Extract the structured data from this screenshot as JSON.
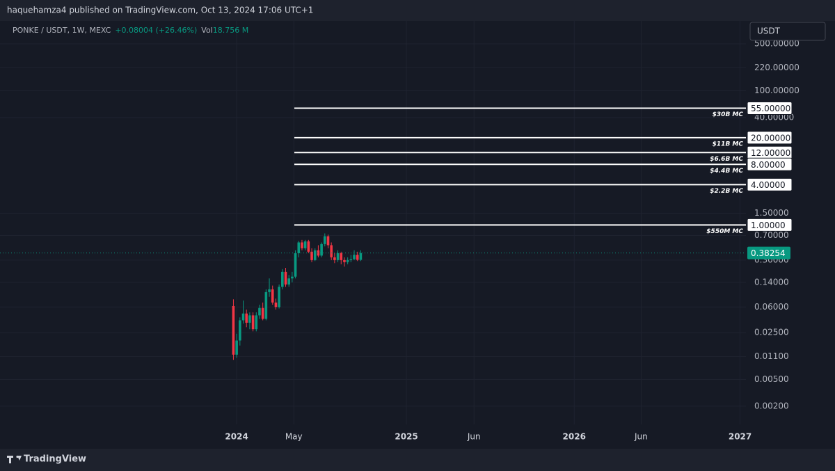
{
  "header": {
    "published": "haquehamza4 published on TradingView.com, Oct 13, 2024 17:06 UTC+1"
  },
  "chart_data": {
    "type": "candlestick",
    "symbol": "PONKE / USDT, 1W, MEXC",
    "change": "+0.08004 (+26.46%)",
    "volume_label": "Vol",
    "volume": "18.756 M",
    "currency": "USDT",
    "log_scale": true,
    "grid": true,
    "up_color": "#089981",
    "down_color": "#f23645",
    "ylim": [
      0.00107,
      1100
    ],
    "yticks": [
      {
        "value": 500,
        "label": "500.00000"
      },
      {
        "value": 220,
        "label": "220.00000"
      },
      {
        "value": 100,
        "label": "100.00000"
      },
      {
        "value": 40,
        "label": "40.00000"
      },
      {
        "value": 1.5,
        "label": "1.50000"
      },
      {
        "value": 0.7,
        "label": "0.70000"
      },
      {
        "value": 0.3,
        "label": "0.30000"
      },
      {
        "value": 0.14,
        "label": "0.14000"
      },
      {
        "value": 0.06,
        "label": "0.06000"
      },
      {
        "value": 0.025,
        "label": "0.02500"
      },
      {
        "value": 0.011,
        "label": "0.01100"
      },
      {
        "value": 0.005,
        "label": "0.00500"
      },
      {
        "value": 0.002,
        "label": "0.00200"
      }
    ],
    "xlim": [
      -72.5,
      156
    ],
    "xticks": [
      {
        "value": 0,
        "label": "2024"
      },
      {
        "value": 17.5,
        "label": "May"
      },
      {
        "value": 52,
        "label": "2025"
      },
      {
        "value": 72.7,
        "label": "Jun"
      },
      {
        "value": 103.4,
        "label": "2026"
      },
      {
        "value": 123.9,
        "label": "Jun"
      },
      {
        "value": 154.2,
        "label": "2027"
      }
    ],
    "candles": {
      "x": [
        -1,
        0,
        1,
        2,
        3,
        4,
        5,
        6,
        7,
        8,
        9,
        10,
        11,
        12,
        13,
        14,
        15,
        16,
        17,
        18,
        19,
        20,
        21,
        22,
        23,
        24,
        25,
        26,
        27,
        28,
        29,
        30,
        31,
        32,
        33,
        34,
        35,
        36,
        37,
        38
      ],
      "open": [
        0.062,
        0.0117,
        0.019,
        0.038,
        0.048,
        0.035,
        0.045,
        0.028,
        0.045,
        0.058,
        0.04,
        0.1,
        0.11,
        0.07,
        0.06,
        0.12,
        0.2,
        0.13,
        0.16,
        0.17,
        0.38,
        0.55,
        0.45,
        0.57,
        0.4,
        0.3,
        0.42,
        0.35,
        0.52,
        0.68,
        0.5,
        0.33,
        0.3,
        0.38,
        0.3,
        0.28,
        0.3,
        0.31,
        0.36,
        0.3025
      ],
      "high": [
        0.078,
        0.024,
        0.042,
        0.075,
        0.055,
        0.05,
        0.05,
        0.05,
        0.065,
        0.07,
        0.11,
        0.16,
        0.125,
        0.08,
        0.13,
        0.22,
        0.23,
        0.18,
        0.2,
        0.42,
        0.58,
        0.6,
        0.6,
        0.6,
        0.45,
        0.45,
        0.5,
        0.55,
        0.75,
        0.72,
        0.55,
        0.38,
        0.42,
        0.4,
        0.33,
        0.33,
        0.36,
        0.42,
        0.4,
        0.42
      ],
      "low": [
        0.0098,
        0.0105,
        0.016,
        0.034,
        0.03,
        0.028,
        0.026,
        0.026,
        0.04,
        0.038,
        0.038,
        0.085,
        0.065,
        0.055,
        0.057,
        0.11,
        0.12,
        0.12,
        0.14,
        0.16,
        0.33,
        0.42,
        0.42,
        0.38,
        0.28,
        0.29,
        0.33,
        0.33,
        0.48,
        0.45,
        0.3,
        0.27,
        0.28,
        0.26,
        0.24,
        0.26,
        0.28,
        0.3,
        0.29,
        0.29
      ],
      "close": [
        0.0117,
        0.019,
        0.038,
        0.048,
        0.035,
        0.045,
        0.028,
        0.045,
        0.058,
        0.04,
        0.1,
        0.11,
        0.07,
        0.06,
        0.12,
        0.2,
        0.13,
        0.16,
        0.17,
        0.38,
        0.55,
        0.45,
        0.57,
        0.4,
        0.3,
        0.42,
        0.35,
        0.52,
        0.68,
        0.5,
        0.33,
        0.3,
        0.38,
        0.3,
        0.28,
        0.3,
        0.31,
        0.36,
        0.3025,
        0.38254
      ]
    },
    "levels": {
      "color": "#ffffff",
      "values": [
        55,
        20,
        12,
        8,
        4,
        1
      ],
      "value_labels": [
        "55.00000",
        "20.00000",
        "12.00000",
        "8.00000",
        "4.00000",
        "1.00000"
      ],
      "notes": [
        "$30B MC",
        "$11B MC",
        "$6.6B MC",
        "$4.4B MC",
        "$2.2B MC",
        "$550M MC"
      ]
    },
    "last_price": {
      "value": 0.38254,
      "color": "#089981"
    }
  },
  "footer": {
    "brand": "TradingView"
  }
}
